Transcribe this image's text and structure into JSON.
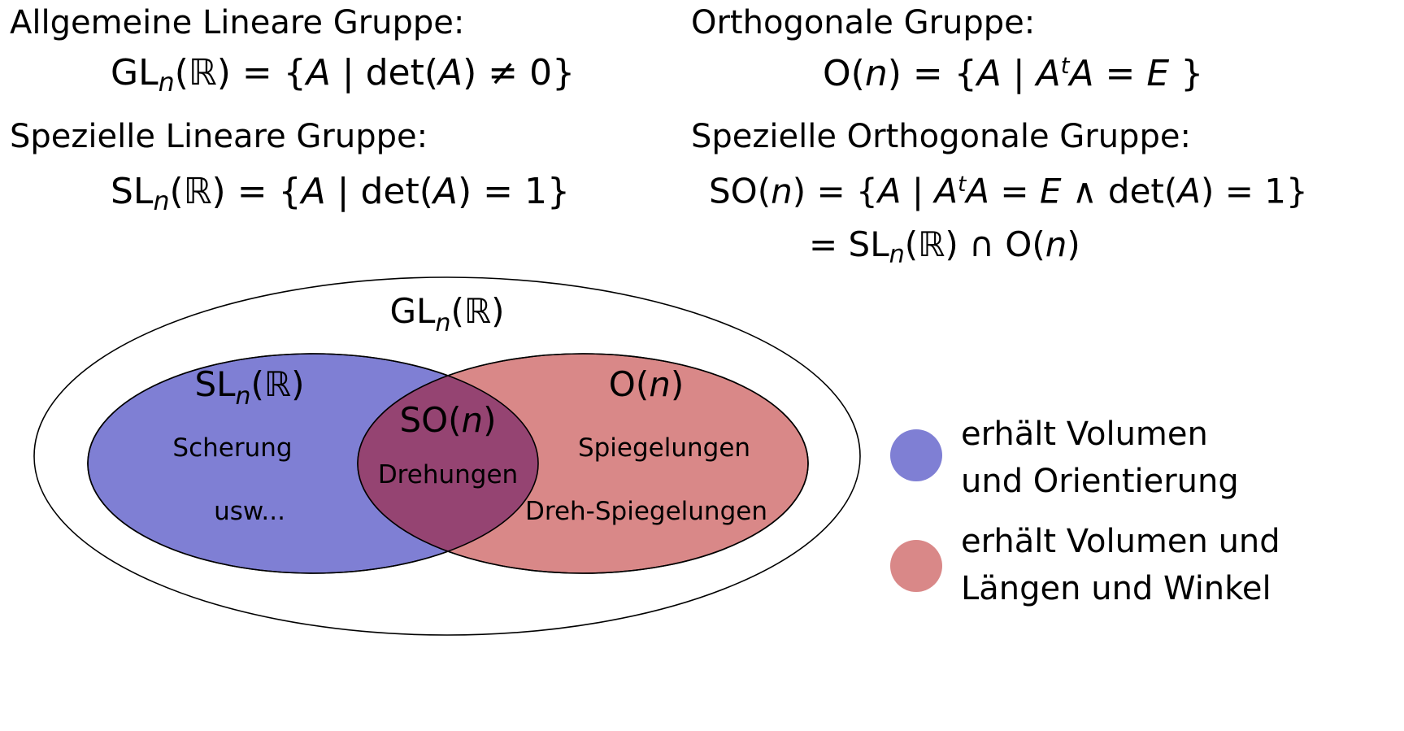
{
  "definitions": {
    "gl": {
      "heading": "Allgemeine Lineare Gruppe:",
      "lhs_base": "GL",
      "lhs_sub": "n",
      "lhs_field": "(ℝ)",
      "set_open": " = {",
      "element": "A",
      "sep": " | ",
      "condition": "det(",
      "cond_var": "A",
      "condition_tail": ") ≠ 0",
      "set_close": "}"
    },
    "sl": {
      "heading": "Spezielle Lineare Gruppe:",
      "lhs_base": "SL",
      "lhs_sub": "n",
      "lhs_field": "(ℝ)",
      "set_open": " = {",
      "element": "A",
      "sep": " | ",
      "condition": "det(",
      "cond_var": "A",
      "condition_tail": ") = 1",
      "set_close": "}"
    },
    "o": {
      "heading": "Orthogonale Gruppe:",
      "lhs_base": "O(",
      "lhs_var": "n",
      "lhs_close": ")",
      "set_open": " = {",
      "element": "A",
      "sep": " | ",
      "cond_a": "A",
      "cond_sup": "t",
      "cond_b": "A",
      "cond_eq": " = ",
      "cond_e": "E",
      "set_close": " }"
    },
    "so": {
      "heading": "Spezielle Orthogonale Gruppe:",
      "lhs_base": "SO(",
      "lhs_var": "n",
      "lhs_close": ")",
      "set_open": " = {",
      "element": "A",
      "sep": " | ",
      "cond_a": "A",
      "cond_sup": "t",
      "cond_b": "A",
      "cond_eq": " = ",
      "cond_e": "E",
      "cond_and": " ∧ det(",
      "cond_var": "A",
      "cond_tail": ") = 1",
      "set_close": "}",
      "line2_eq": "= SL",
      "line2_sub": "n",
      "line2_field": "(ℝ) ∩ O(",
      "line2_var": "n",
      "line2_close": ")"
    }
  },
  "venn": {
    "outer": {
      "label_base": "GL",
      "label_sub": "n",
      "label_field": "(ℝ)"
    },
    "sl_set": {
      "label_base": "SL",
      "label_sub": "n",
      "label_field": "(ℝ)",
      "items": [
        "Scherung",
        "usw..."
      ],
      "color": "#7f7fd4"
    },
    "o_set": {
      "label_base": "O(",
      "label_var": "n",
      "label_close": ")",
      "items": [
        "Spiegelungen",
        "Dreh-Spiegelungen"
      ],
      "color": "#d98888"
    },
    "intersection": {
      "label_base": "SO(",
      "label_var": "n",
      "label_close": ")",
      "items": [
        "Drehungen"
      ],
      "color": "#954472"
    }
  },
  "legend": [
    {
      "color": "#7f7fd4",
      "line1": "erhält Volumen",
      "line2": "und Orientierung"
    },
    {
      "color": "#d98888",
      "line1": "erhält Volumen und",
      "line2": "Längen und Winkel"
    }
  ]
}
